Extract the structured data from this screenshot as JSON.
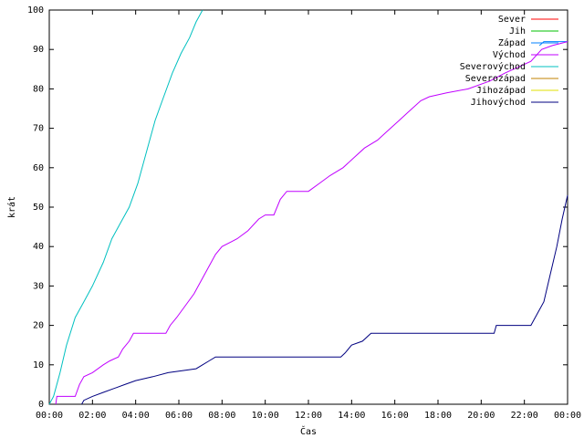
{
  "chart_data": {
    "type": "line",
    "xlabel": "Čas",
    "ylabel": "krát",
    "x_ticks": [
      "00:00",
      "02:00",
      "04:00",
      "06:00",
      "08:00",
      "10:00",
      "12:00",
      "14:00",
      "16:00",
      "18:00",
      "20:00",
      "22:00",
      "00:00"
    ],
    "x_range_hours": [
      0,
      24
    ],
    "y_ticks": [
      0,
      10,
      20,
      30,
      40,
      50,
      60,
      70,
      80,
      90,
      100
    ],
    "ylim": [
      0,
      100
    ],
    "grid": false,
    "legend_position": "top-right",
    "series": [
      {
        "name": "Sever",
        "color": "#ff0000",
        "points": []
      },
      {
        "name": "Jih",
        "color": "#00c000",
        "points": []
      },
      {
        "name": "Západ",
        "color": "#0080ff",
        "points": [
          [
            22.7,
            91
          ],
          [
            22.9,
            92
          ],
          [
            24,
            92
          ]
        ]
      },
      {
        "name": "Východ",
        "color": "#c000ff",
        "points": [
          [
            0.3,
            0
          ],
          [
            0.35,
            2
          ],
          [
            1.2,
            2
          ],
          [
            1.4,
            5
          ],
          [
            1.6,
            7
          ],
          [
            2.0,
            8
          ],
          [
            2.5,
            10
          ],
          [
            2.8,
            11
          ],
          [
            3.2,
            12
          ],
          [
            3.4,
            14
          ],
          [
            3.7,
            16
          ],
          [
            3.9,
            18
          ],
          [
            5.4,
            18
          ],
          [
            5.6,
            20
          ],
          [
            5.9,
            22
          ],
          [
            6.3,
            25
          ],
          [
            6.7,
            28
          ],
          [
            7.1,
            32
          ],
          [
            7.4,
            35
          ],
          [
            7.7,
            38
          ],
          [
            8.0,
            40
          ],
          [
            8.7,
            42
          ],
          [
            9.2,
            44
          ],
          [
            9.7,
            47
          ],
          [
            10.0,
            48
          ],
          [
            10.4,
            48
          ],
          [
            10.7,
            52
          ],
          [
            11.0,
            54
          ],
          [
            12.0,
            54
          ],
          [
            12.5,
            56
          ],
          [
            13.0,
            58
          ],
          [
            13.6,
            60
          ],
          [
            14.2,
            63
          ],
          [
            14.6,
            65
          ],
          [
            15.2,
            67
          ],
          [
            15.6,
            69
          ],
          [
            16.2,
            72
          ],
          [
            16.6,
            74
          ],
          [
            17.2,
            77
          ],
          [
            17.6,
            78
          ],
          [
            18.4,
            79
          ],
          [
            19.4,
            80
          ],
          [
            20.4,
            82
          ],
          [
            21.1,
            84
          ],
          [
            22.3,
            87
          ],
          [
            22.8,
            90
          ],
          [
            23.3,
            91
          ],
          [
            24,
            92
          ]
        ]
      },
      {
        "name": "Severovýchod",
        "color": "#00c0c0",
        "points": [
          [
            0,
            0
          ],
          [
            0.2,
            2
          ],
          [
            0.5,
            8
          ],
          [
            0.8,
            15
          ],
          [
            1.2,
            22
          ],
          [
            1.6,
            26
          ],
          [
            2.0,
            30
          ],
          [
            2.5,
            36
          ],
          [
            2.9,
            42
          ],
          [
            3.3,
            46
          ],
          [
            3.7,
            50
          ],
          [
            4.1,
            56
          ],
          [
            4.5,
            64
          ],
          [
            4.9,
            72
          ],
          [
            5.3,
            78
          ],
          [
            5.7,
            84
          ],
          [
            6.1,
            89
          ],
          [
            6.5,
            93
          ],
          [
            6.8,
            97
          ],
          [
            7.1,
            100
          ]
        ]
      },
      {
        "name": "Severozápad",
        "color": "#c08000",
        "points": []
      },
      {
        "name": "Jihozápad",
        "color": "#e0e000",
        "points": []
      },
      {
        "name": "Jihovýchod",
        "color": "#000080",
        "points": [
          [
            1.5,
            0
          ],
          [
            1.6,
            1
          ],
          [
            2.0,
            2
          ],
          [
            2.5,
            3
          ],
          [
            3.0,
            4
          ],
          [
            3.5,
            5
          ],
          [
            4.0,
            6
          ],
          [
            4.8,
            7
          ],
          [
            5.5,
            8
          ],
          [
            6.8,
            9
          ],
          [
            7.1,
            10
          ],
          [
            7.4,
            11
          ],
          [
            7.7,
            12
          ],
          [
            13.5,
            12
          ],
          [
            13.7,
            13
          ],
          [
            14.0,
            15
          ],
          [
            14.5,
            16
          ],
          [
            14.9,
            18
          ],
          [
            20.6,
            18
          ],
          [
            20.7,
            20
          ],
          [
            22.3,
            20
          ],
          [
            22.6,
            23
          ],
          [
            22.9,
            26
          ],
          [
            23.2,
            33
          ],
          [
            23.5,
            40
          ],
          [
            23.75,
            47
          ],
          [
            24,
            53
          ]
        ]
      }
    ]
  }
}
